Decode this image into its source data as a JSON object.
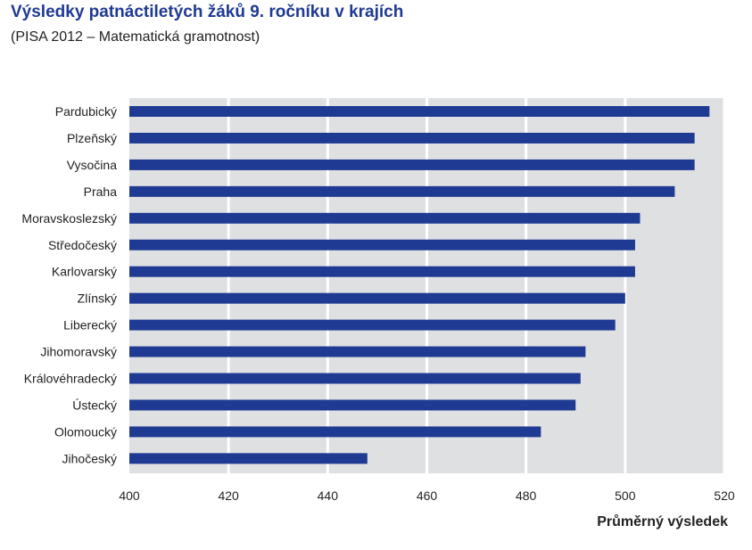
{
  "header": {
    "title": "Výsledky patnáctiletých žáků 9. ročníku v krajích",
    "subtitle": "(PISA 2012 – Matematická gramotnost)"
  },
  "chart_data": {
    "type": "bar",
    "orientation": "horizontal",
    "title": "Výsledky patnáctiletých žáků 9. ročníku v krajích",
    "subtitle": "(PISA 2012 – Matematická gramotnost)",
    "xlabel": "Průměrný výsledek",
    "ylabel": "",
    "xlim": [
      400,
      520
    ],
    "xticks": [
      400,
      420,
      440,
      460,
      480,
      500,
      520
    ],
    "grid": true,
    "legend": false,
    "colors": {
      "bar": "#1f3a93",
      "plot_background": "#dfe0e2",
      "grid": "#ffffff"
    },
    "categories": [
      "Pardubický",
      "Plzeňský",
      "Vysočina",
      "Praha",
      "Moravskoslezský",
      "Středočeský",
      "Karlovarský",
      "Zlínský",
      "Liberecký",
      "Jihomoravský",
      "Královéhradecký",
      "Ústecký",
      "Olomoucký",
      "Jihočeský"
    ],
    "values": [
      517,
      514,
      514,
      510,
      503,
      502,
      502,
      500,
      498,
      492,
      491,
      490,
      483,
      448
    ]
  }
}
